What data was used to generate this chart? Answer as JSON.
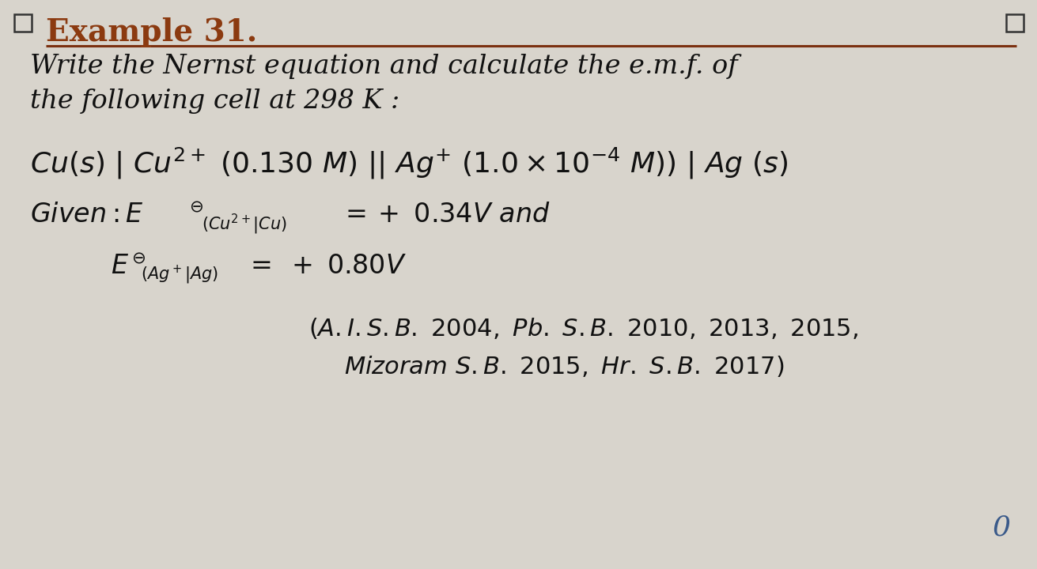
{
  "background_color": "#d8d4cc",
  "title_text": "Example 31.",
  "title_color": "#8B3A10",
  "title_fontsize": 28,
  "line_color": "#7B3010",
  "checkbox_color": "#333333",
  "text_color": "#111111",
  "zero_color": "#3a5a8a",
  "body_fontsize": 24,
  "sub_fontsize": 15,
  "cite_fontsize": 22
}
